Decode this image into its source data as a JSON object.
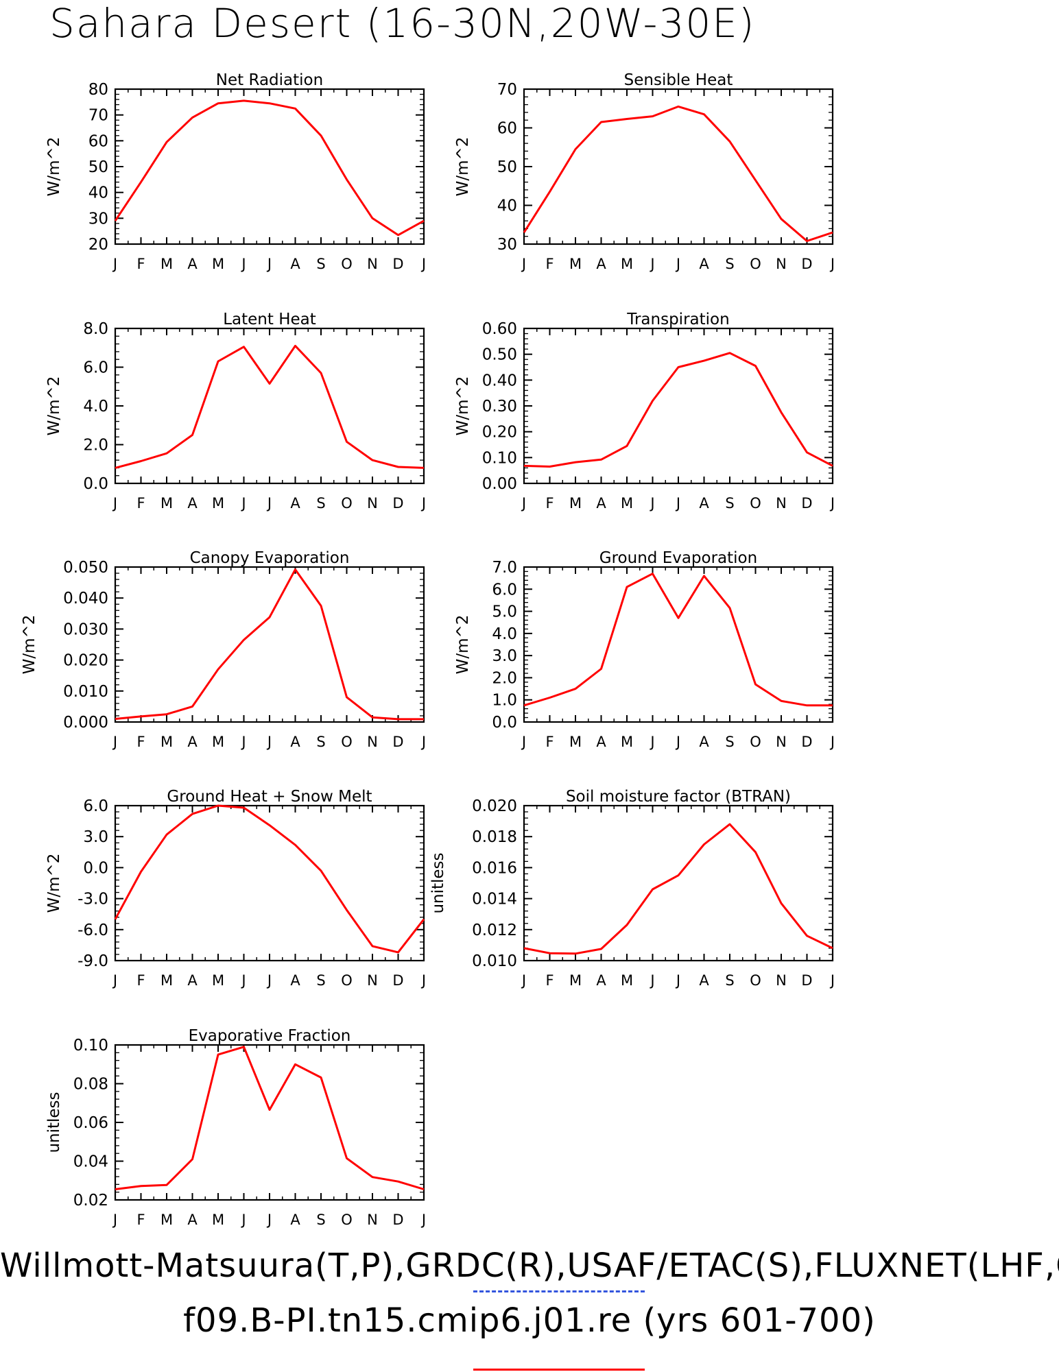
{
  "page": {
    "title": "Sahara Desert (16-30N,20W-30E)",
    "footer_line_1": "Willmott-Matsuura(T,P),GRDC(R),USAF/ETAC(S),FLUXNET(LHF,G",
    "footer_line_2": "f09.B-PI.tn15.cmip6.j01.re (yrs 601-700)",
    "line_color": "#ff0000"
  },
  "chart_data": [
    {
      "type": "line",
      "title": "Net Radiation",
      "ylabel": "W/m^2",
      "x": [
        "J",
        "F",
        "M",
        "A",
        "M",
        "J",
        "J",
        "A",
        "S",
        "O",
        "N",
        "D",
        "J"
      ],
      "ylim": [
        20,
        80
      ],
      "yticks": [
        "20",
        "30",
        "40",
        "50",
        "60",
        "70",
        "80"
      ],
      "series": [
        {
          "values": [
            29,
            44,
            59.5,
            69,
            74.5,
            75.5,
            74.5,
            72.5,
            62,
            45,
            30,
            23.5,
            29
          ]
        }
      ]
    },
    {
      "type": "line",
      "title": "Sensible Heat",
      "ylabel": "W/m^2",
      "x": [
        "J",
        "F",
        "M",
        "A",
        "M",
        "J",
        "J",
        "A",
        "S",
        "O",
        "N",
        "D",
        "J"
      ],
      "ylim": [
        30,
        70
      ],
      "yticks": [
        "30",
        "40",
        "50",
        "60",
        "70"
      ],
      "series": [
        {
          "values": [
            33,
            43.5,
            54.5,
            61.5,
            62.3,
            63,
            65.5,
            63.5,
            56.5,
            46.5,
            36.5,
            30.8,
            33
          ]
        }
      ]
    },
    {
      "type": "line",
      "title": "Latent Heat",
      "ylabel": "W/m^2",
      "x": [
        "J",
        "F",
        "M",
        "A",
        "M",
        "J",
        "J",
        "A",
        "S",
        "O",
        "N",
        "D",
        "J"
      ],
      "ylim": [
        0,
        8
      ],
      "yticks": [
        "0.0",
        "2.0",
        "4.0",
        "6.0",
        "8.0"
      ],
      "series": [
        {
          "values": [
            0.8,
            1.15,
            1.55,
            2.5,
            6.3,
            7.05,
            5.15,
            7.1,
            5.7,
            2.15,
            1.2,
            0.85,
            0.8
          ]
        }
      ]
    },
    {
      "type": "line",
      "title": "Transpiration",
      "ylabel": "W/m^2",
      "x": [
        "J",
        "F",
        "M",
        "A",
        "M",
        "J",
        "J",
        "A",
        "S",
        "O",
        "N",
        "D",
        "J"
      ],
      "ylim": [
        0,
        0.6
      ],
      "yticks": [
        "0.00",
        "0.10",
        "0.20",
        "0.30",
        "0.40",
        "0.50",
        "0.60"
      ],
      "series": [
        {
          "values": [
            0.068,
            0.065,
            0.082,
            0.092,
            0.145,
            0.32,
            0.45,
            0.475,
            0.505,
            0.455,
            0.275,
            0.12,
            0.068
          ]
        }
      ]
    },
    {
      "type": "line",
      "title": "Canopy Evaporation",
      "ylabel": "W/m^2",
      "x": [
        "J",
        "F",
        "M",
        "A",
        "M",
        "J",
        "J",
        "A",
        "S",
        "O",
        "N",
        "D",
        "J"
      ],
      "ylim": [
        0,
        0.05
      ],
      "yticks": [
        "0.000",
        "0.010",
        "0.020",
        "0.030",
        "0.040",
        "0.050"
      ],
      "series": [
        {
          "values": [
            0.001,
            0.0018,
            0.0025,
            0.005,
            0.017,
            0.0265,
            0.0338,
            0.0492,
            0.0375,
            0.008,
            0.0015,
            0.0009,
            0.0009
          ]
        }
      ]
    },
    {
      "type": "line",
      "title": "Ground Evaporation",
      "ylabel": "W/m^2",
      "x": [
        "J",
        "F",
        "M",
        "A",
        "M",
        "J",
        "J",
        "A",
        "S",
        "O",
        "N",
        "D",
        "J"
      ],
      "ylim": [
        0,
        7
      ],
      "yticks": [
        "0.0",
        "1.0",
        "2.0",
        "3.0",
        "4.0",
        "5.0",
        "6.0",
        "7.0"
      ],
      "series": [
        {
          "values": [
            0.75,
            1.1,
            1.5,
            2.4,
            6.1,
            6.7,
            4.7,
            6.6,
            5.15,
            1.7,
            0.95,
            0.75,
            0.75
          ]
        }
      ]
    },
    {
      "type": "line",
      "title": "Ground Heat + Snow Melt",
      "ylabel": "W/m^2",
      "x": [
        "J",
        "F",
        "M",
        "A",
        "M",
        "J",
        "J",
        "A",
        "S",
        "O",
        "N",
        "D",
        "J"
      ],
      "ylim": [
        -9,
        6
      ],
      "yticks": [
        "-9.0",
        "-6.0",
        "-3.0",
        "0.0",
        "3.0",
        "6.0"
      ],
      "series": [
        {
          "values": [
            -5,
            -0.4,
            3.2,
            5.2,
            6.0,
            5.8,
            4.1,
            2.2,
            -0.3,
            -4.1,
            -7.6,
            -8.2,
            -5
          ]
        }
      ]
    },
    {
      "type": "line",
      "title": "Soil moisture factor (BTRAN)",
      "ylabel": "unitless",
      "x": [
        "J",
        "F",
        "M",
        "A",
        "M",
        "J",
        "J",
        "A",
        "S",
        "O",
        "N",
        "D",
        "J"
      ],
      "ylim": [
        0.01,
        0.02
      ],
      "yticks": [
        "0.010",
        "0.012",
        "0.014",
        "0.016",
        "0.018",
        "0.020"
      ],
      "series": [
        {
          "values": [
            0.0108,
            0.01048,
            0.01045,
            0.01075,
            0.0123,
            0.0146,
            0.0155,
            0.0175,
            0.0188,
            0.017,
            0.0137,
            0.0116,
            0.0108
          ]
        }
      ]
    },
    {
      "type": "line",
      "title": "Evaporative Fraction",
      "ylabel": "unitless",
      "x": [
        "J",
        "F",
        "M",
        "A",
        "M",
        "J",
        "J",
        "A",
        "S",
        "O",
        "N",
        "D",
        "J"
      ],
      "ylim": [
        0.02,
        0.1
      ],
      "yticks": [
        "0.02",
        "0.04",
        "0.06",
        "0.08",
        "0.10"
      ],
      "series": [
        {
          "values": [
            0.0255,
            0.0272,
            0.0277,
            0.041,
            0.095,
            0.099,
            0.0665,
            0.09,
            0.0832,
            0.0415,
            0.0318,
            0.0295,
            0.0255
          ]
        }
      ]
    }
  ]
}
